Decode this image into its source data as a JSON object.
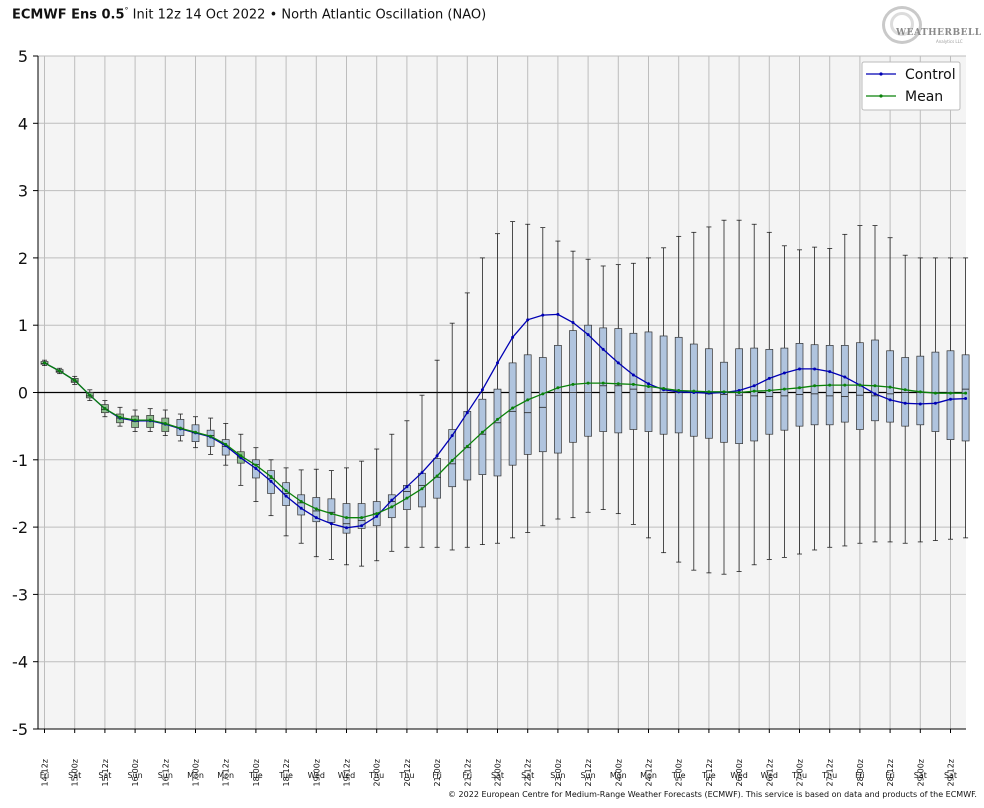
{
  "header": {
    "title_main": "ECMWF Ens 0.5",
    "title_rest": "Init 12z 14 Oct 2022 • North Atlantic Oscillation (NAO)",
    "degree": "°"
  },
  "logo": {
    "text": "WEATHERBELL",
    "sub": "Analytics LLC"
  },
  "footer": {
    "copyright": "© 2022 European Centre for Medium-Range Weather Forecasts (ECMWF). This service is based on data and products of the ECMWF."
  },
  "colors": {
    "control": "#0000b4",
    "mean": "#0a820a",
    "box_fill": "#b0c4de",
    "box_fill_green": "#8fbc8f",
    "plot_bg": "#f4f4f4",
    "grid": "#bdbdbd"
  },
  "chart_data": {
    "type": "box",
    "title": "ECMWF Ens 0.5° Init 12z 14 Oct 2022 • North Atlantic Oscillation (NAO)",
    "ylim": [
      -5,
      5
    ],
    "yticks": [
      "5",
      "4",
      "3",
      "2",
      "1",
      "0",
      "-1",
      "-2",
      "-3",
      "-4",
      "-5"
    ],
    "grid": true,
    "legend": {
      "position": "top-right",
      "entries": [
        "Control",
        "Mean"
      ]
    },
    "x": [
      "14-12z",
      "15-00z",
      "15-12z",
      "16-00z",
      "16-12z",
      "17-00z",
      "17-12z",
      "18-00z",
      "18-12z",
      "19-00z",
      "19-12z",
      "20-00z",
      "20-12z",
      "21-00z",
      "21-12z",
      "22-00z",
      "22-12z",
      "23-00z",
      "23-12z",
      "24-00z",
      "24-12z",
      "25-00z",
      "25-12z",
      "26-00z",
      "26-12z",
      "27-00z",
      "27-12z",
      "28-00z",
      "28-12z",
      "29-00z",
      "29-12z"
    ],
    "x_days": [
      "Fri",
      "Sat",
      "Sat",
      "Sun",
      "Sun",
      "Mon",
      "Mon",
      "Tue",
      "Tue",
      "Wed",
      "Wed",
      "Thu",
      "Thu",
      "Fri",
      "Fri",
      "Sat",
      "Sat",
      "Sun",
      "Sun",
      "Mon",
      "Mon",
      "Tue",
      "Tue",
      "Wed",
      "Wed",
      "Thu",
      "Thu",
      "Fri",
      "Fri",
      "Sat",
      "Sat"
    ],
    "time_step_hours": 6,
    "series": [
      {
        "name": "Control",
        "values": [
          0.44,
          0.32,
          0.18,
          -0.04,
          -0.24,
          -0.38,
          -0.42,
          -0.42,
          -0.47,
          -0.54,
          -0.6,
          -0.66,
          -0.79,
          -0.97,
          -1.13,
          -1.32,
          -1.54,
          -1.72,
          -1.86,
          -1.95,
          -2.01,
          -1.98,
          -1.84,
          -1.6,
          -1.4,
          -1.19,
          -0.94,
          -0.64,
          -0.3,
          0.04,
          0.44,
          0.82,
          1.08,
          1.15,
          1.16,
          1.04,
          0.86,
          0.64,
          0.44,
          0.26,
          0.13,
          0.04,
          0.01,
          0.0,
          -0.01,
          0.0,
          0.03,
          0.1,
          0.21,
          0.29,
          0.35,
          0.35,
          0.31,
          0.23,
          0.11,
          -0.02,
          -0.11,
          -0.16,
          -0.17,
          -0.16,
          -0.1,
          -0.09
        ]
      },
      {
        "name": "Mean",
        "values": [
          0.44,
          0.32,
          0.18,
          -0.04,
          -0.24,
          -0.37,
          -0.41,
          -0.41,
          -0.46,
          -0.53,
          -0.59,
          -0.65,
          -0.77,
          -0.94,
          -1.08,
          -1.25,
          -1.46,
          -1.62,
          -1.73,
          -1.8,
          -1.86,
          -1.86,
          -1.8,
          -1.7,
          -1.57,
          -1.43,
          -1.24,
          -1.01,
          -0.8,
          -0.59,
          -0.4,
          -0.23,
          -0.11,
          -0.02,
          0.07,
          0.12,
          0.14,
          0.14,
          0.13,
          0.12,
          0.09,
          0.06,
          0.03,
          0.02,
          0.01,
          0.01,
          0.0,
          0.02,
          0.03,
          0.05,
          0.07,
          0.1,
          0.11,
          0.11,
          0.11,
          0.1,
          0.08,
          0.04,
          0.01,
          -0.01,
          -0.01,
          -0.01
        ]
      }
    ],
    "boxes": {
      "q1": [
        0.42,
        0.3,
        0.15,
        -0.08,
        -0.3,
        -0.45,
        -0.52,
        -0.52,
        -0.58,
        -0.64,
        -0.73,
        -0.8,
        -0.93,
        -1.05,
        -1.27,
        -1.5,
        -1.68,
        -1.82,
        -1.92,
        -1.93,
        -2.09,
        -2.02,
        -1.98,
        -1.86,
        -1.74,
        -1.7,
        -1.57,
        -1.4,
        -1.3,
        -1.22,
        -1.24,
        -1.08,
        -0.92,
        -0.88,
        -0.9,
        -0.74,
        -0.65,
        -0.58,
        -0.6,
        -0.55,
        -0.58,
        -0.62,
        -0.6,
        -0.65,
        -0.68,
        -0.74,
        -0.76,
        -0.72,
        -0.62,
        -0.56,
        -0.5,
        -0.48,
        -0.48,
        -0.44,
        -0.55,
        -0.42,
        -0.44,
        -0.5,
        -0.48,
        -0.58,
        -0.7,
        -0.72
      ],
      "median": [
        0.43,
        0.31,
        0.17,
        -0.05,
        -0.25,
        -0.38,
        -0.43,
        -0.42,
        -0.47,
        -0.53,
        -0.6,
        -0.64,
        -0.8,
        -0.96,
        -1.07,
        -1.28,
        -1.5,
        -1.64,
        -1.76,
        -1.78,
        -1.95,
        -1.9,
        -1.8,
        -1.62,
        -1.47,
        -1.38,
        -1.26,
        -1.06,
        -0.82,
        -0.62,
        -0.45,
        -0.28,
        -0.3,
        -0.22,
        0.0,
        0.0,
        0.0,
        0.1,
        0.1,
        0.05,
        0.0,
        0.0,
        0.0,
        0.0,
        -0.02,
        -0.03,
        -0.04,
        -0.05,
        -0.06,
        -0.05,
        -0.03,
        -0.02,
        -0.05,
        -0.06,
        -0.04,
        -0.05,
        -0.02,
        0.0,
        0.0,
        0.0,
        0.0,
        0.05
      ],
      "q3": [
        0.46,
        0.34,
        0.21,
        0.0,
        -0.18,
        -0.32,
        -0.35,
        -0.34,
        -0.38,
        -0.4,
        -0.48,
        -0.56,
        -0.7,
        -0.88,
        -1.0,
        -1.16,
        -1.34,
        -1.52,
        -1.56,
        -1.58,
        -1.65,
        -1.65,
        -1.62,
        -1.52,
        -1.38,
        -1.2,
        -0.98,
        -0.55,
        -0.28,
        -0.1,
        0.05,
        0.44,
        0.56,
        0.52,
        0.7,
        0.92,
        1.0,
        0.96,
        0.95,
        0.88,
        0.9,
        0.84,
        0.82,
        0.72,
        0.65,
        0.45,
        0.65,
        0.66,
        0.64,
        0.66,
        0.73,
        0.71,
        0.7,
        0.7,
        0.74,
        0.78,
        0.62,
        0.52,
        0.54,
        0.6,
        0.62,
        0.56
      ],
      "whisker_low": [
        0.4,
        0.28,
        0.12,
        -0.12,
        -0.36,
        -0.5,
        -0.58,
        -0.58,
        -0.64,
        -0.72,
        -0.82,
        -0.92,
        -1.08,
        -1.38,
        -1.62,
        -1.83,
        -2.13,
        -2.24,
        -2.44,
        -2.48,
        -2.56,
        -2.58,
        -2.5,
        -2.36,
        -2.3,
        -2.3,
        -2.3,
        -2.34,
        -2.3,
        -2.26,
        -2.24,
        -2.16,
        -2.08,
        -1.98,
        -1.88,
        -1.86,
        -1.78,
        -1.74,
        -1.8,
        -1.96,
        -2.16,
        -2.38,
        -2.52,
        -2.64,
        -2.68,
        -2.7,
        -2.66,
        -2.56,
        -2.48,
        -2.45,
        -2.4,
        -2.34,
        -2.3,
        -2.28,
        -2.24,
        -2.22,
        -2.22,
        -2.24,
        -2.22,
        -2.2,
        -2.18,
        -2.16
      ],
      "whisker_high": [
        0.48,
        0.36,
        0.24,
        0.04,
        -0.12,
        -0.22,
        -0.26,
        -0.24,
        -0.26,
        -0.32,
        -0.36,
        -0.38,
        -0.46,
        -0.62,
        -0.82,
        -1.0,
        -1.12,
        -1.15,
        -1.14,
        -1.16,
        -1.12,
        -1.02,
        -0.84,
        -0.62,
        -0.42,
        -0.04,
        0.48,
        1.03,
        1.48,
        2.0,
        2.36,
        2.54,
        2.5,
        2.45,
        2.25,
        2.1,
        1.98,
        1.88,
        1.9,
        1.92,
        2.0,
        2.15,
        2.32,
        2.38,
        2.46,
        2.56,
        2.56,
        2.5,
        2.38,
        2.18,
        2.12,
        2.16,
        2.14,
        2.35,
        2.48,
        2.48,
        2.3,
        2.04,
        2.0,
        2.0,
        2.0,
        2.0
      ]
    }
  }
}
